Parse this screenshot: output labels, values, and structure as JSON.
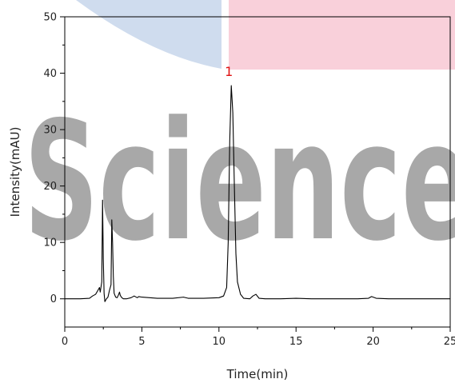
{
  "chart_data": {
    "type": "line",
    "xlabel": "Time(min)",
    "ylabel": "Intensity(mAU)",
    "xlim": [
      0,
      25
    ],
    "ylim": [
      -5,
      50
    ],
    "x_ticks": [
      0,
      5,
      10,
      15,
      20,
      25
    ],
    "y_ticks": [
      0,
      10,
      20,
      30,
      40,
      50
    ],
    "grid": false,
    "series": [
      {
        "color": "#000000",
        "x": [
          0,
          1.0,
          1.6,
          1.8,
          2.0,
          2.15,
          2.25,
          2.3,
          2.4,
          2.45,
          2.5,
          2.55,
          2.6,
          2.7,
          2.8,
          2.9,
          3.0,
          3.05,
          3.1,
          3.15,
          3.2,
          3.3,
          3.4,
          3.5,
          3.55,
          3.6,
          3.7,
          3.8,
          4.0,
          4.3,
          4.5,
          4.7,
          4.8,
          5.0,
          5.5,
          6.0,
          7.0,
          7.7,
          8.0,
          9.0,
          10.0,
          10.3,
          10.5,
          10.6,
          10.7,
          10.8,
          10.9,
          11.0,
          11.1,
          11.2,
          11.4,
          11.6,
          12.0,
          12.2,
          12.4,
          12.6,
          13.0,
          14.0,
          15.0,
          16.0,
          17.0,
          18.0,
          19.0,
          19.7,
          19.9,
          20.2,
          21.0,
          22.0,
          23.0,
          24.0,
          25.0
        ],
        "y": [
          0,
          0,
          0.1,
          0.5,
          0.8,
          1.5,
          2.0,
          1.2,
          3.0,
          17.5,
          7.0,
          1.0,
          -0.5,
          0.0,
          0.3,
          1.5,
          2.5,
          14.0,
          10.0,
          4.0,
          1.0,
          0.3,
          0.2,
          0.8,
          1.2,
          0.6,
          0.2,
          0.0,
          0.0,
          0.2,
          0.5,
          0.2,
          0.4,
          0.3,
          0.2,
          0.1,
          0.1,
          0.3,
          0.1,
          0.1,
          0.2,
          0.5,
          2.0,
          10.0,
          28.0,
          37.8,
          33.0,
          20.0,
          8.0,
          3.0,
          0.8,
          0.1,
          0.0,
          0.5,
          0.8,
          0.1,
          0.0,
          0.0,
          0.1,
          0.0,
          0.0,
          0.0,
          0.0,
          0.1,
          0.4,
          0.1,
          0.0,
          0.0,
          0.0,
          0.0,
          0.0
        ]
      }
    ],
    "annotations": [
      {
        "text": "1",
        "x": 10.8,
        "y": 37.8,
        "color": "#e01010"
      }
    ]
  },
  "watermark": {
    "text": "Science",
    "color": "#a8a8a8",
    "blue_shape_color": "#cfdcee",
    "pink_shape_color": "#f9d0da"
  }
}
